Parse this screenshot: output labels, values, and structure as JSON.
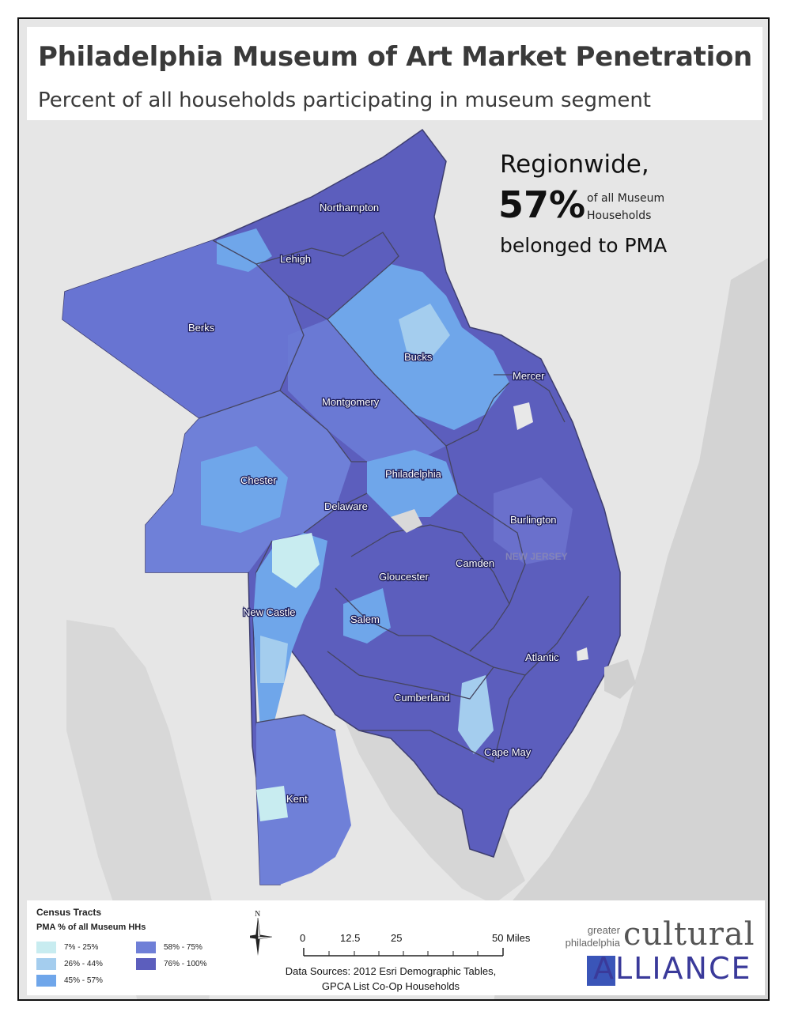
{
  "title": "Philadelphia Museum of Art Market Penetration",
  "subtitle": "Percent of all households participating in museum segment",
  "callout": {
    "line1": "Regionwide,",
    "percent": "57%",
    "small_line1": "of all Museum",
    "small_line2": "Households",
    "line3": "belonged to PMA"
  },
  "counties": [
    {
      "name": "Northampton"
    },
    {
      "name": "Lehigh"
    },
    {
      "name": "Berks"
    },
    {
      "name": "Bucks"
    },
    {
      "name": "Mercer"
    },
    {
      "name": "Montgomery"
    },
    {
      "name": "Chester"
    },
    {
      "name": "Philadelphia"
    },
    {
      "name": "Delaware"
    },
    {
      "name": "Burlington"
    },
    {
      "name": "Camden"
    },
    {
      "name": "Gloucester"
    },
    {
      "name": "New Castle"
    },
    {
      "name": "Salem"
    },
    {
      "name": "Atlantic"
    },
    {
      "name": "Cumberland"
    },
    {
      "name": "Cape May"
    },
    {
      "name": "Kent"
    }
  ],
  "basemap_label": "NEW JERSEY",
  "legend": {
    "title": "Census Tracts",
    "subtitle": "PMA % of all Museum HHs",
    "classes": [
      {
        "label": "7% - 25%",
        "color": "#c8ecf0"
      },
      {
        "label": "26% - 44%",
        "color": "#a4cdee"
      },
      {
        "label": "45% - 57%",
        "color": "#6fa6ea"
      },
      {
        "label": "58% - 75%",
        "color": "#6f7fd7"
      },
      {
        "label": "76% - 100%",
        "color": "#5c5ebd"
      }
    ]
  },
  "north_arrow": "N",
  "scale_bar": {
    "ticks": [
      "0",
      "12.5",
      "25",
      "50 Miles"
    ]
  },
  "sources": {
    "line1": "Data Sources: 2012 Esri Demographic Tables,",
    "line2": "GPCA List Co-Op Households"
  },
  "logo": {
    "greater": "greater",
    "philadelphia": "philadelphia",
    "cultural": "cultural",
    "alliance": "ALLIANCE"
  },
  "colors": {
    "background_land": "#e6e6e6",
    "water": "#d2d2d2",
    "county_border": "#454560"
  }
}
